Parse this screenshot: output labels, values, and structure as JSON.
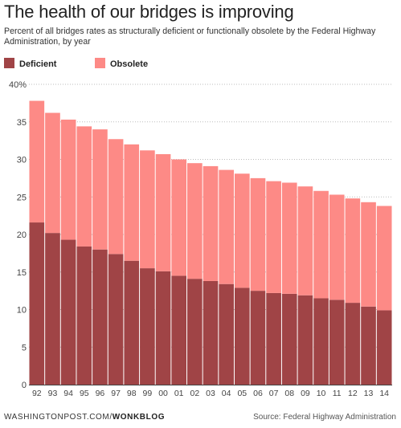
{
  "chart_data": {
    "type": "bar",
    "stacked": true,
    "title": "The health of our bridges is improving",
    "subtitle": "Percent of all bridges rates as structurally deficient or functionally obsolete by the Federal Highway Administration, by year",
    "categories": [
      "92",
      "93",
      "94",
      "95",
      "96",
      "97",
      "98",
      "99",
      "00",
      "01",
      "02",
      "03",
      "04",
      "05",
      "06",
      "07",
      "08",
      "09",
      "10",
      "11",
      "12",
      "13",
      "14"
    ],
    "series": [
      {
        "name": "Deficient",
        "color": "#a04446",
        "values": [
          21.6,
          20.2,
          19.3,
          18.4,
          18.0,
          17.4,
          16.5,
          15.5,
          15.1,
          14.5,
          14.1,
          13.8,
          13.4,
          12.9,
          12.5,
          12.2,
          12.1,
          11.9,
          11.5,
          11.3,
          10.9,
          10.4,
          9.9
        ]
      },
      {
        "name": "Obsolete",
        "color": "#fd8a86",
        "values": [
          16.2,
          16.0,
          16.0,
          16.0,
          16.0,
          15.3,
          15.5,
          15.7,
          15.6,
          15.5,
          15.4,
          15.3,
          15.2,
          15.2,
          15.0,
          14.9,
          14.8,
          14.5,
          14.3,
          14.0,
          13.9,
          13.9,
          13.9
        ]
      }
    ],
    "ylim": [
      0,
      40
    ],
    "yticks": [
      "0",
      "5",
      "10",
      "15",
      "20",
      "25",
      "30",
      "35",
      "40%"
    ],
    "grid": true,
    "legend_position": "top-left"
  },
  "footer": {
    "source_prefix": "WASHINGTONPOST.COM/",
    "source_brand": "WONKBLOG",
    "credit": "Source: Federal Highway Administration"
  }
}
